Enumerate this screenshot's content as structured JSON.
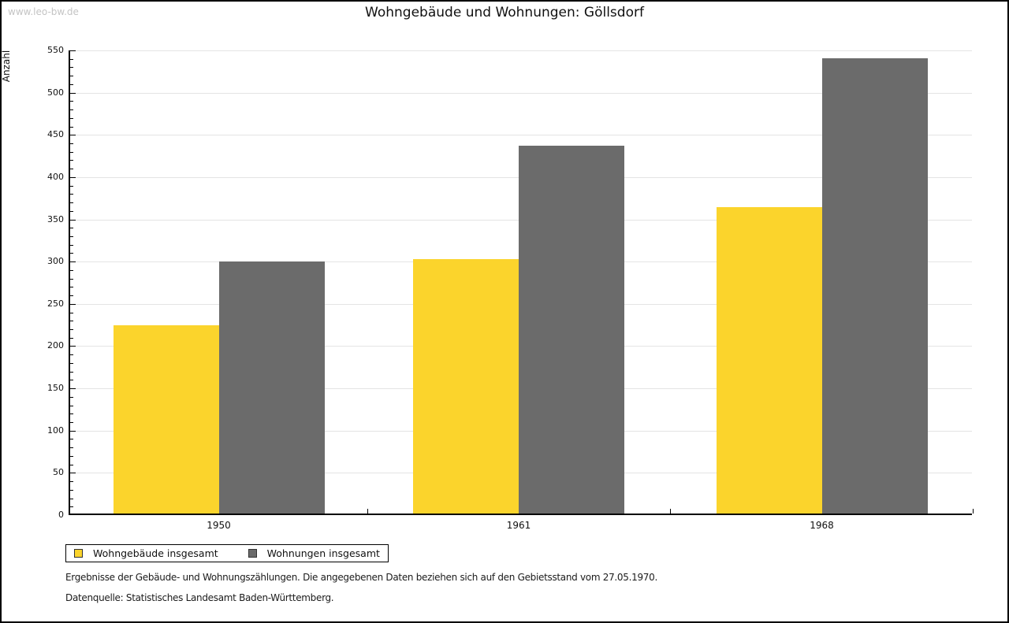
{
  "watermark": "www.leo-bw.de",
  "title": "Wohngebäude und Wohnungen: Göllsdorf",
  "chart_data": {
    "type": "bar",
    "title": "Wohngebäude und Wohnungen: Göllsdorf",
    "xlabel": "",
    "ylabel": "Anzahl",
    "categories": [
      "1950",
      "1961",
      "1968"
    ],
    "series": [
      {
        "name": "Wohngebäude insgesamt",
        "color": "#FBD42C",
        "values": [
          223,
          301,
          363
        ]
      },
      {
        "name": "Wohnungen insgesamt",
        "color": "#6B6B6B",
        "values": [
          298,
          435,
          539
        ]
      }
    ],
    "ylim": [
      0,
      550
    ],
    "ytick_step": 50,
    "minor_tick_step": 10,
    "grid": true,
    "legend_position": "bottom-left"
  },
  "footnotes": [
    "Ergebnisse der Gebäude- und Wohnungszählungen. Die angegebenen Daten beziehen sich auf den Gebietsstand vom 27.05.1970.",
    "Datenquelle: Statistisches Landesamt Baden-Württemberg."
  ],
  "colors": {
    "bar_yellow": "#FBD42C",
    "bar_gray": "#6B6B6B",
    "gridline": "#e4e4e4",
    "axis": "#000000",
    "watermark": "#c4c4c4"
  }
}
